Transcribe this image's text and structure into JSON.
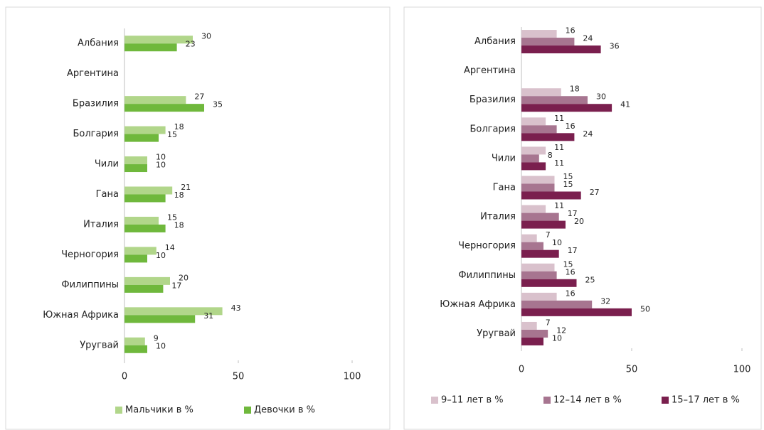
{
  "chart_data": [
    {
      "type": "bar",
      "orientation": "horizontal",
      "categories": [
        "Албания",
        "Аргентина",
        "Бразилия",
        "Болгария",
        "Чили",
        "Гана",
        "Италия",
        "Черногория",
        "Филиппины",
        "Южная Африка",
        "Уругвай"
      ],
      "series": [
        {
          "name": "Мальчики в %",
          "color": "#b1d68a",
          "values": [
            30,
            null,
            27,
            18,
            10,
            21,
            15,
            14,
            20,
            43,
            9
          ]
        },
        {
          "name": "Девочки в %",
          "color": "#6fb83c",
          "values": [
            23,
            null,
            35,
            15,
            10,
            18,
            18,
            10,
            17,
            31,
            10
          ]
        }
      ],
      "xlim": [
        0,
        100
      ],
      "xticks": [
        0,
        50,
        100
      ],
      "legend": "bottom"
    },
    {
      "type": "bar",
      "orientation": "horizontal",
      "categories": [
        "Албания",
        "Аргентина",
        "Бразилия",
        "Болгария",
        "Чили",
        "Гана",
        "Италия",
        "Черногория",
        "Филиппины",
        "Южная Африка",
        "Уругвай"
      ],
      "series": [
        {
          "name": "9–11 лет в %",
          "color": "#d9c1cc",
          "values": [
            16,
            null,
            18,
            11,
            11,
            15,
            11,
            7,
            15,
            16,
            7
          ]
        },
        {
          "name": "12–14 лет в %",
          "color": "#a77590",
          "values": [
            24,
            null,
            30,
            16,
            8,
            15,
            17,
            10,
            16,
            32,
            12
          ]
        },
        {
          "name": "15–17 лет в %",
          "color": "#7a1f4e",
          "values": [
            36,
            null,
            41,
            24,
            11,
            27,
            20,
            17,
            25,
            50,
            10
          ]
        }
      ],
      "xlim": [
        0,
        100
      ],
      "xticks": [
        0,
        50,
        100
      ],
      "legend": "bottom"
    }
  ]
}
